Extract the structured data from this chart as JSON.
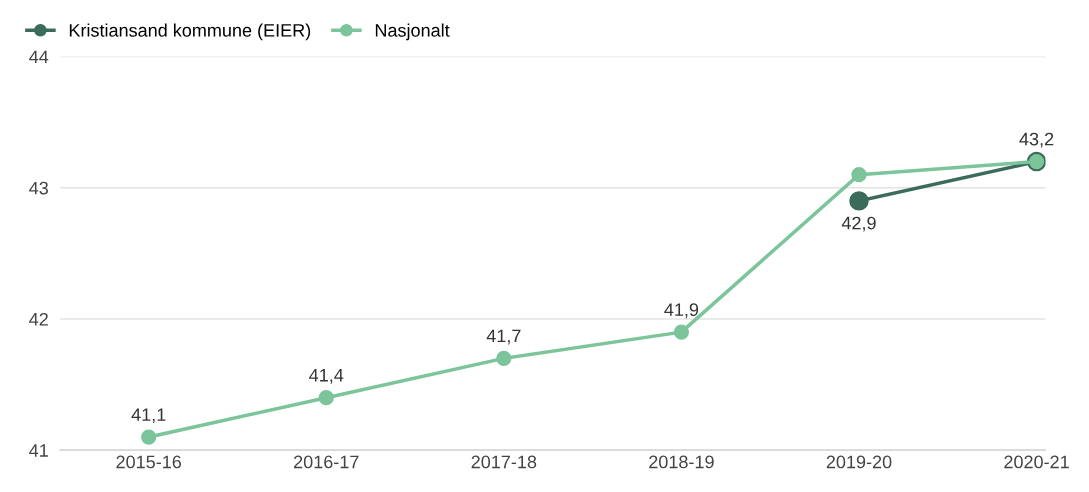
{
  "chart_data": {
    "type": "line",
    "categories": [
      "2015-16",
      "2016-17",
      "2017-18",
      "2018-19",
      "2019-20",
      "2020-21"
    ],
    "series": [
      {
        "name": "Kristiansand kommune (EIER)",
        "color": "#3b6b5a",
        "values": [
          null,
          null,
          null,
          null,
          42.9,
          43.2
        ],
        "value_labels": [
          null,
          null,
          null,
          null,
          "42,9",
          "43,2"
        ]
      },
      {
        "name": "Nasjonalt",
        "color": "#7cc49a",
        "values": [
          41.1,
          41.4,
          41.7,
          41.9,
          43.1,
          43.2
        ],
        "value_labels": [
          "41,1",
          "41,4",
          "41,7",
          "41,9",
          null,
          null
        ]
      }
    ],
    "ylim": [
      41,
      44
    ],
    "yticks": [
      41,
      42,
      43,
      44
    ],
    "grid": "y",
    "legend": "top left",
    "marker": "circle",
    "line_style": "solid"
  }
}
